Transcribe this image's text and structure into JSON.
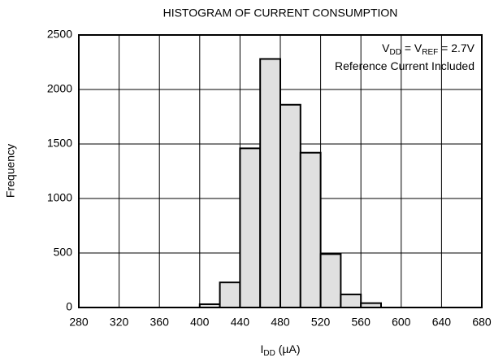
{
  "chart_data": {
    "type": "histogram",
    "title": "HISTOGRAM OF CURRENT CONSUMPTION",
    "x_label": [
      "I",
      "DD",
      " (µA)"
    ],
    "y_label": "Frequency",
    "annotation": [
      [
        "V",
        "DD",
        " = V",
        "REF",
        " = 2.7V"
      ],
      [
        "Reference Current Included"
      ]
    ],
    "bins": [
      400,
      420,
      440,
      460,
      480,
      500,
      520,
      540,
      560,
      580
    ],
    "values": [
      30,
      230,
      1460,
      2280,
      1860,
      1420,
      490,
      120,
      40
    ],
    "color": "#e0e0e0",
    "xlim": [
      280,
      680
    ],
    "xticks": [
      280,
      320,
      360,
      400,
      440,
      480,
      520,
      560,
      600,
      640,
      680
    ],
    "ylim": [
      0,
      2500
    ],
    "yticks": [
      0,
      500,
      1000,
      1500,
      2000,
      2500
    ],
    "grid": true
  }
}
